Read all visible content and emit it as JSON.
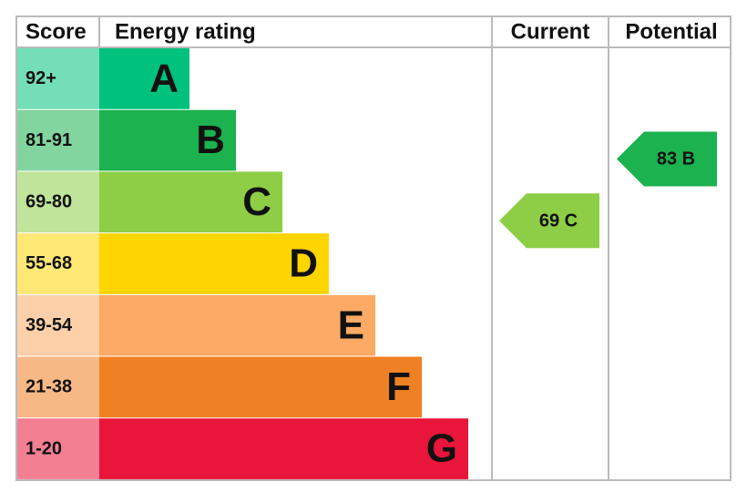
{
  "header": {
    "score": "Score",
    "rating": "Energy rating",
    "current": "Current",
    "potential": "Potential"
  },
  "bands": [
    {
      "score": "92+",
      "letter": "A",
      "color": "#00c27c"
    },
    {
      "score": "81-91",
      "letter": "B",
      "color": "#1bb24f"
    },
    {
      "score": "69-80",
      "letter": "C",
      "color": "#8dce46"
    },
    {
      "score": "55-68",
      "letter": "D",
      "color": "#ffd500"
    },
    {
      "score": "39-54",
      "letter": "E",
      "color": "#fcaa65"
    },
    {
      "score": "21-38",
      "letter": "F",
      "color": "#ef8023"
    },
    {
      "score": "1-20",
      "letter": "G",
      "color": "#e9153b"
    }
  ],
  "current": {
    "score": 69,
    "rating": "C"
  },
  "potential": {
    "score": 83,
    "rating": "B"
  }
}
